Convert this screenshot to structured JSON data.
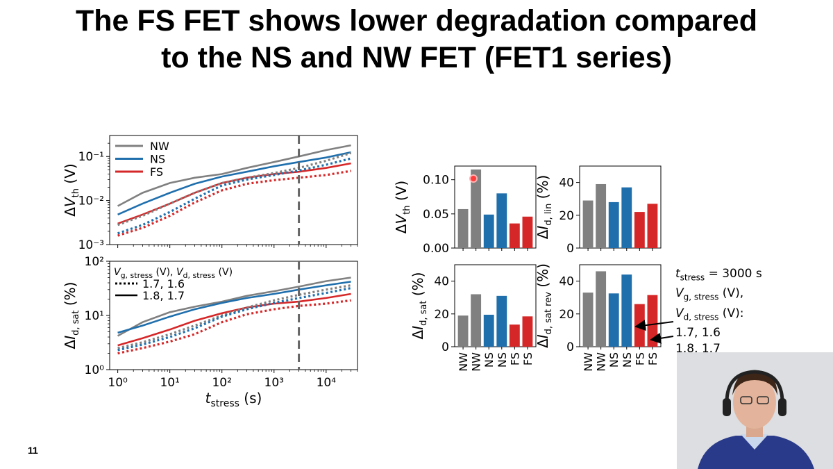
{
  "slide": {
    "title_line1": "The FS FET shows lower degradation compared",
    "title_line2": "to the NS and NW FET (FET1 series)",
    "page_number": "11"
  },
  "colors": {
    "NW": "#808080",
    "NS": "#1f6fad",
    "FS": "#d62728",
    "marker": "#666666"
  },
  "annotation": {
    "t_stress_value": " = 3000 s",
    "vg_suffix": " (V),",
    "vd_suffix": " (V):",
    "pair1": "1.7, 1.6",
    "pair2": "1.8, 1.7"
  },
  "chart_data": [
    {
      "id": "dvth-vs-time",
      "type": "line",
      "ylabel": "ΔV_th (V)",
      "x_scale": "log",
      "y_scale": "log",
      "xlim": [
        0.7,
        40000
      ],
      "ylim": [
        0.001,
        0.3
      ],
      "y_ticks": [
        "10⁻³",
        "10⁻²",
        "10⁻¹"
      ],
      "legend": [
        "NW",
        "NS",
        "FS"
      ],
      "legend_position": "top-left",
      "vertical_marker_x": 3000,
      "x": [
        1,
        3,
        10,
        30,
        100,
        300,
        1000,
        3000,
        10000,
        30000
      ],
      "series": [
        {
          "name": "NW",
          "style": "solid",
          "values": [
            0.0075,
            0.015,
            0.025,
            0.033,
            0.04,
            0.055,
            0.075,
            0.1,
            0.14,
            0.18
          ]
        },
        {
          "name": "NS",
          "style": "solid",
          "values": [
            0.0048,
            0.0085,
            0.015,
            0.024,
            0.035,
            0.045,
            0.06,
            0.075,
            0.095,
            0.125
          ]
        },
        {
          "name": "FS",
          "style": "solid",
          "values": [
            0.003,
            0.0048,
            0.0085,
            0.015,
            0.025,
            0.033,
            0.04,
            0.045,
            0.055,
            0.07
          ]
        },
        {
          "name": "NW",
          "style": "dotted",
          "values": [
            0.0028,
            0.0045,
            0.0085,
            0.015,
            0.025,
            0.033,
            0.042,
            0.055,
            0.08,
            0.12
          ]
        },
        {
          "name": "NS",
          "style": "dotted",
          "values": [
            0.0018,
            0.0028,
            0.0055,
            0.011,
            0.022,
            0.03,
            0.038,
            0.048,
            0.065,
            0.09
          ]
        },
        {
          "name": "FS",
          "style": "dotted",
          "values": [
            0.0016,
            0.0024,
            0.0045,
            0.009,
            0.017,
            0.024,
            0.029,
            0.033,
            0.038,
            0.047
          ]
        }
      ]
    },
    {
      "id": "did-sat-vs-time",
      "type": "line",
      "xlabel": "t_stress (s)",
      "ylabel": "ΔI_d, sat (%)",
      "x_scale": "log",
      "y_scale": "log",
      "xlim": [
        0.7,
        40000
      ],
      "ylim": [
        1,
        100
      ],
      "x_ticks": [
        "10⁰",
        "10¹",
        "10²",
        "10³",
        "10⁴"
      ],
      "y_ticks": [
        "10⁰",
        "10¹",
        "10²"
      ],
      "legend_title": "V_g, stress (V), V_d, stress (V)",
      "legend": [
        {
          "style": "dotted",
          "label": "1.7, 1.6"
        },
        {
          "style": "solid",
          "label": "1.8, 1.7"
        }
      ],
      "legend_position": "top-left",
      "vertical_marker_x": 3000,
      "x": [
        1,
        3,
        10,
        30,
        100,
        300,
        1000,
        3000,
        10000,
        30000
      ],
      "series": [
        {
          "name": "NW",
          "style": "solid",
          "values": [
            4.2,
            7.5,
            11.5,
            14.5,
            18,
            23,
            28,
            34,
            43,
            50
          ]
        },
        {
          "name": "NS",
          "style": "solid",
          "values": [
            4.8,
            6.5,
            9.5,
            13,
            17,
            21,
            25,
            30,
            36,
            42
          ]
        },
        {
          "name": "FS",
          "style": "solid",
          "values": [
            2.8,
            3.8,
            5.5,
            8,
            11,
            14,
            16.5,
            18,
            21,
            25
          ]
        },
        {
          "name": "NW",
          "style": "dotted",
          "values": [
            2.5,
            3.2,
            4.5,
            6.5,
            10,
            14,
            19,
            24,
            30,
            36
          ]
        },
        {
          "name": "NS",
          "style": "dotted",
          "values": [
            2.3,
            2.9,
            4.0,
            5.8,
            9.5,
            13,
            17,
            21,
            26,
            32
          ]
        },
        {
          "name": "FS",
          "style": "dotted",
          "values": [
            2.0,
            2.5,
            3.3,
            4.5,
            7.5,
            10.5,
            13,
            15,
            16.5,
            19
          ]
        }
      ]
    },
    {
      "id": "dvth-bars",
      "type": "bar",
      "ylabel": "ΔV_th (V)",
      "ylim": [
        0,
        0.12
      ],
      "y_ticks": [
        "0.00",
        "0.05",
        "0.10"
      ],
      "y_tick_values": [
        0,
        0.05,
        0.1
      ],
      "categories": [
        "NW",
        "NW",
        "NS",
        "NS",
        "FS",
        "FS"
      ],
      "values": [
        0.057,
        0.115,
        0.049,
        0.08,
        0.036,
        0.046
      ]
    },
    {
      "id": "did-lin-bars",
      "type": "bar",
      "ylabel": "ΔI_d, lin (%)",
      "ylim": [
        0,
        50
      ],
      "y_ticks": [
        "0",
        "20",
        "40"
      ],
      "y_tick_values": [
        0,
        20,
        40
      ],
      "categories": [
        "NW",
        "NW",
        "NS",
        "NS",
        "FS",
        "FS"
      ],
      "values": [
        29,
        39,
        28,
        37,
        22,
        27
      ]
    },
    {
      "id": "did-sat-bars",
      "type": "bar",
      "ylabel": "ΔI_d, sat (%)",
      "ylim": [
        0,
        50
      ],
      "y_ticks": [
        "0",
        "20",
        "40"
      ],
      "y_tick_values": [
        0,
        20,
        40
      ],
      "categories": [
        "NW",
        "NW",
        "NS",
        "NS",
        "FS",
        "FS"
      ],
      "values": [
        19,
        32,
        19.5,
        31,
        13.5,
        18.5
      ]
    },
    {
      "id": "did-sat-rev-bars",
      "type": "bar",
      "ylabel": "ΔI_d, sat rev (%)",
      "ylim": [
        0,
        50
      ],
      "y_ticks": [
        "0",
        "20",
        "40"
      ],
      "y_tick_values": [
        0,
        20,
        40
      ],
      "categories": [
        "NW",
        "NW",
        "NS",
        "NS",
        "FS",
        "FS"
      ],
      "values": [
        33,
        46,
        32.5,
        44,
        26,
        31.5
      ]
    }
  ]
}
